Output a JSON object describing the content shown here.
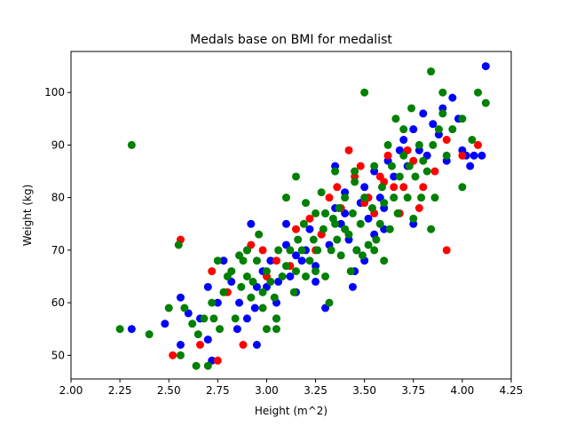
{
  "chart_data": {
    "type": "scatter",
    "title": "Medals base on BMI for medalist",
    "xlabel": "Height (m^2)",
    "ylabel": "Weight (kg)",
    "xlim": [
      2.0,
      4.25
    ],
    "ylim": [
      45.5,
      107.8
    ],
    "xticks": [
      "2.00",
      "2.25",
      "2.50",
      "2.75",
      "3.00",
      "3.25",
      "3.50",
      "3.75",
      "4.00",
      "4.25"
    ],
    "yticks": [
      "50",
      "60",
      "70",
      "80",
      "90",
      "100"
    ],
    "grid": false,
    "legend": "none",
    "series": [
      {
        "color": "#0000ff",
        "points": [
          [
            2.31,
            55
          ],
          [
            2.48,
            56
          ],
          [
            2.56,
            52
          ],
          [
            2.56,
            61
          ],
          [
            2.6,
            58
          ],
          [
            2.66,
            57
          ],
          [
            2.7,
            63
          ],
          [
            2.72,
            49
          ],
          [
            2.75,
            60
          ],
          [
            2.78,
            68
          ],
          [
            2.82,
            64
          ],
          [
            2.86,
            60
          ],
          [
            2.9,
            57
          ],
          [
            2.9,
            70
          ],
          [
            2.92,
            75
          ],
          [
            2.94,
            59
          ],
          [
            2.95,
            52
          ],
          [
            2.98,
            66
          ],
          [
            3.0,
            63
          ],
          [
            3.02,
            68
          ],
          [
            3.05,
            60
          ],
          [
            3.06,
            64
          ],
          [
            3.1,
            71
          ],
          [
            3.12,
            65
          ],
          [
            3.15,
            62
          ],
          [
            3.18,
            68
          ],
          [
            3.2,
            70
          ],
          [
            3.22,
            74
          ],
          [
            3.25,
            67
          ],
          [
            3.28,
            73
          ],
          [
            3.3,
            59
          ],
          [
            3.32,
            71
          ],
          [
            3.35,
            78
          ],
          [
            3.38,
            75
          ],
          [
            3.4,
            77
          ],
          [
            3.42,
            72
          ],
          [
            3.44,
            63
          ],
          [
            3.46,
            70
          ],
          [
            3.48,
            79
          ],
          [
            3.5,
            82
          ],
          [
            3.52,
            76
          ],
          [
            3.55,
            85
          ],
          [
            3.58,
            80
          ],
          [
            3.6,
            78
          ],
          [
            3.62,
            87
          ],
          [
            3.65,
            84
          ],
          [
            3.68,
            89
          ],
          [
            3.7,
            91
          ],
          [
            3.72,
            86
          ],
          [
            3.75,
            93
          ],
          [
            3.78,
            89
          ],
          [
            3.8,
            96
          ],
          [
            3.82,
            88
          ],
          [
            3.85,
            94
          ],
          [
            3.88,
            92
          ],
          [
            3.9,
            97
          ],
          [
            3.92,
            87
          ],
          [
            3.95,
            99
          ],
          [
            3.98,
            95
          ],
          [
            4.0,
            89
          ],
          [
            4.02,
            88
          ],
          [
            4.04,
            86
          ],
          [
            4.06,
            88
          ],
          [
            4.1,
            88
          ],
          [
            4.12,
            105
          ],
          [
            3.35,
            86
          ],
          [
            3.45,
            66
          ],
          [
            3.55,
            73
          ],
          [
            3.25,
            64
          ],
          [
            3.05,
            57
          ],
          [
            2.85,
            55
          ],
          [
            2.95,
            63
          ],
          [
            3.15,
            69
          ],
          [
            3.4,
            81
          ],
          [
            3.6,
            74
          ],
          [
            3.75,
            75
          ],
          [
            3.5,
            68
          ],
          [
            3.3,
            77
          ],
          [
            3.1,
            75
          ],
          [
            2.7,
            53
          ]
        ]
      },
      {
        "color": "#ff0000",
        "points": [
          [
            2.52,
            50
          ],
          [
            2.56,
            72
          ],
          [
            2.66,
            52
          ],
          [
            2.72,
            66
          ],
          [
            2.75,
            49
          ],
          [
            2.88,
            52
          ],
          [
            2.92,
            71
          ],
          [
            2.98,
            70
          ],
          [
            3.05,
            68
          ],
          [
            3.12,
            67
          ],
          [
            3.22,
            76
          ],
          [
            3.28,
            73
          ],
          [
            3.32,
            80
          ],
          [
            3.36,
            82
          ],
          [
            3.38,
            78
          ],
          [
            3.42,
            89
          ],
          [
            3.45,
            84
          ],
          [
            3.48,
            86
          ],
          [
            3.52,
            80
          ],
          [
            3.55,
            77
          ],
          [
            3.58,
            84
          ],
          [
            3.6,
            83
          ],
          [
            3.62,
            88
          ],
          [
            3.65,
            82
          ],
          [
            3.7,
            82
          ],
          [
            3.72,
            89
          ],
          [
            3.75,
            87
          ],
          [
            3.78,
            78
          ],
          [
            3.8,
            82
          ],
          [
            3.86,
            85
          ],
          [
            3.92,
            91
          ],
          [
            3.92,
            70
          ],
          [
            4.0,
            88
          ],
          [
            4.08,
            90
          ],
          [
            3.15,
            74
          ],
          [
            3.0,
            65
          ],
          [
            2.8,
            62
          ],
          [
            3.25,
            70
          ],
          [
            3.5,
            79
          ],
          [
            3.68,
            77
          ]
        ]
      },
      {
        "color": "#008000",
        "points": [
          [
            2.25,
            55
          ],
          [
            2.31,
            90
          ],
          [
            2.4,
            54
          ],
          [
            2.5,
            59
          ],
          [
            2.55,
            71
          ],
          [
            2.56,
            50
          ],
          [
            2.58,
            59
          ],
          [
            2.62,
            56
          ],
          [
            2.64,
            48
          ],
          [
            2.65,
            54
          ],
          [
            2.68,
            57
          ],
          [
            2.7,
            48
          ],
          [
            2.72,
            60
          ],
          [
            2.73,
            57
          ],
          [
            2.75,
            68
          ],
          [
            2.76,
            55
          ],
          [
            2.78,
            62
          ],
          [
            2.8,
            65
          ],
          [
            2.82,
            66
          ],
          [
            2.84,
            57
          ],
          [
            2.86,
            69
          ],
          [
            2.87,
            63
          ],
          [
            2.88,
            68
          ],
          [
            2.9,
            65
          ],
          [
            2.92,
            61
          ],
          [
            2.93,
            64
          ],
          [
            2.95,
            68
          ],
          [
            2.96,
            73
          ],
          [
            2.98,
            62
          ],
          [
            3.0,
            55
          ],
          [
            3.0,
            66
          ],
          [
            3.02,
            64
          ],
          [
            3.04,
            61
          ],
          [
            3.05,
            57
          ],
          [
            3.06,
            70
          ],
          [
            3.08,
            65
          ],
          [
            3.1,
            80
          ],
          [
            3.1,
            67
          ],
          [
            3.12,
            70
          ],
          [
            3.14,
            62
          ],
          [
            3.15,
            66
          ],
          [
            3.16,
            72
          ],
          [
            3.18,
            70
          ],
          [
            3.19,
            75
          ],
          [
            3.2,
            65
          ],
          [
            3.2,
            79
          ],
          [
            3.22,
            68
          ],
          [
            3.24,
            72
          ],
          [
            3.25,
            77
          ],
          [
            3.26,
            70
          ],
          [
            3.28,
            81
          ],
          [
            3.29,
            74
          ],
          [
            3.3,
            65
          ],
          [
            3.3,
            77
          ],
          [
            3.32,
            60
          ],
          [
            3.33,
            70
          ],
          [
            3.34,
            76
          ],
          [
            3.35,
            85
          ],
          [
            3.36,
            72
          ],
          [
            3.37,
            78
          ],
          [
            3.38,
            69
          ],
          [
            3.4,
            74
          ],
          [
            3.4,
            80
          ],
          [
            3.42,
            73
          ],
          [
            3.43,
            66
          ],
          [
            3.44,
            77
          ],
          [
            3.45,
            83
          ],
          [
            3.46,
            70
          ],
          [
            3.48,
            75
          ],
          [
            3.49,
            69
          ],
          [
            3.5,
            100
          ],
          [
            3.5,
            80
          ],
          [
            3.52,
            71
          ],
          [
            3.54,
            78
          ],
          [
            3.55,
            86
          ],
          [
            3.56,
            72
          ],
          [
            3.58,
            75
          ],
          [
            3.59,
            82
          ],
          [
            3.6,
            68
          ],
          [
            3.6,
            79
          ],
          [
            3.62,
            90
          ],
          [
            3.63,
            74
          ],
          [
            3.64,
            86
          ],
          [
            3.65,
            80
          ],
          [
            3.66,
            95
          ],
          [
            3.67,
            77
          ],
          [
            3.68,
            84
          ],
          [
            3.7,
            88
          ],
          [
            3.7,
            93
          ],
          [
            3.72,
            80
          ],
          [
            3.73,
            86
          ],
          [
            3.74,
            97
          ],
          [
            3.75,
            76
          ],
          [
            3.76,
            84
          ],
          [
            3.78,
            90
          ],
          [
            3.79,
            80
          ],
          [
            3.8,
            87
          ],
          [
            3.82,
            85
          ],
          [
            3.84,
            104
          ],
          [
            3.84,
            74
          ],
          [
            3.85,
            90
          ],
          [
            3.86,
            80
          ],
          [
            3.88,
            93
          ],
          [
            3.9,
            100
          ],
          [
            3.9,
            96
          ],
          [
            3.92,
            88
          ],
          [
            3.95,
            93
          ],
          [
            4.0,
            82
          ],
          [
            4.0,
            95
          ],
          [
            4.05,
            91
          ],
          [
            4.08,
            100
          ],
          [
            4.12,
            98
          ],
          [
            3.05,
            55
          ],
          [
            2.98,
            59
          ],
          [
            2.9,
            70
          ],
          [
            3.15,
            84
          ],
          [
            3.35,
            75
          ],
          [
            3.55,
            70
          ],
          [
            3.25,
            66
          ],
          [
            3.45,
            85
          ]
        ]
      }
    ]
  }
}
